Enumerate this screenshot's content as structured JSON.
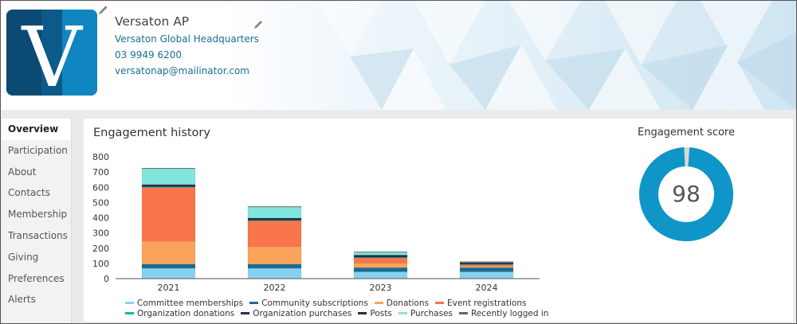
{
  "org": {
    "name": "Versaton AP",
    "address": "Versaton Global Headquarters",
    "phone": "03 9949 6200",
    "email": "versatonap@mailinator.com",
    "logo_letter": "V"
  },
  "sidebar": {
    "items": [
      {
        "label": "Overview",
        "active": true
      },
      {
        "label": "Participation"
      },
      {
        "label": "About"
      },
      {
        "label": "Contacts"
      },
      {
        "label": "Membership"
      },
      {
        "label": "Transactions"
      },
      {
        "label": "Giving"
      },
      {
        "label": "Preferences"
      },
      {
        "label": "Alerts"
      }
    ]
  },
  "engagement_history": {
    "title": "Engagement history"
  },
  "engagement_score": {
    "title": "Engagement score",
    "value": "98",
    "fraction": 0.98,
    "color": "#0f95c8",
    "track_color": "#d8d8d8"
  },
  "chart_data": {
    "type": "bar",
    "stacked": true,
    "categories": [
      "2021",
      "2022",
      "2023",
      "2024"
    ],
    "ylim": [
      0,
      800
    ],
    "yticks": [
      0,
      100,
      200,
      300,
      400,
      500,
      600,
      700,
      800
    ],
    "grid": false,
    "legend_position": "bottom",
    "series": [
      {
        "name": "Committee memberships",
        "color": "#87d0f2",
        "values": [
          68,
          68,
          45,
          45
        ]
      },
      {
        "name": "Community subscriptions",
        "color": "#1a6b92",
        "values": [
          27,
          27,
          27,
          27
        ]
      },
      {
        "name": "Donations",
        "color": "#fba35a",
        "values": [
          150,
          115,
          30,
          10
        ]
      },
      {
        "name": "Event registrations",
        "color": "#fa754b",
        "values": [
          355,
          170,
          35,
          10
        ]
      },
      {
        "name": "Organization donations",
        "color": "#16b5a3",
        "values": [
          3,
          3,
          3,
          3
        ]
      },
      {
        "name": "Organization purchases",
        "color": "#1d3550",
        "values": [
          12,
          12,
          12,
          8
        ]
      },
      {
        "name": "Posts",
        "color": "#2d2a4a",
        "values": [
          3,
          3,
          3,
          3
        ]
      },
      {
        "name": "Purchases",
        "color": "#80e6dc",
        "values": [
          107,
          75,
          20,
          5
        ]
      },
      {
        "name": "Recently logged in",
        "color": "#666666",
        "values": [
          1,
          1,
          1,
          1
        ]
      }
    ]
  }
}
